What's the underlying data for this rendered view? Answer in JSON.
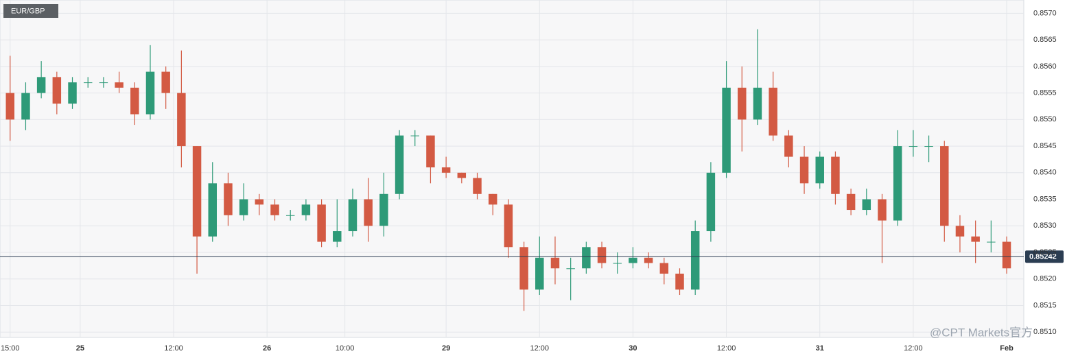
{
  "chart_data": {
    "type": "candlestick",
    "symbol": "EUR/GBP",
    "watermark": "@CPT Markets官方",
    "up_color": "#2e9a78",
    "down_color": "#d35a43",
    "grid": true,
    "x": [
      0,
      2,
      4,
      6,
      8,
      10,
      12,
      14,
      16,
      18,
      20,
      22,
      24,
      26,
      28,
      30,
      32,
      34,
      36,
      38,
      40,
      42,
      44,
      46,
      48,
      50,
      52,
      54,
      56,
      58,
      60,
      62,
      64,
      66,
      68,
      70,
      72,
      74,
      76,
      78,
      80,
      82,
      84,
      86,
      88,
      90,
      92,
      94,
      96,
      98,
      100,
      102,
      104,
      106,
      108,
      110,
      112,
      114,
      116,
      118,
      120,
      122,
      124,
      126,
      128
    ],
    "open": [
      0.8555,
      0.855,
      0.8555,
      0.8558,
      0.8553,
      0.8557,
      0.8557,
      0.8557,
      0.8556,
      0.8551,
      0.8559,
      0.8555,
      0.8545,
      0.8528,
      0.8538,
      0.8532,
      0.8535,
      0.8534,
      0.8532,
      0.8532,
      0.8534,
      0.8527,
      0.8529,
      0.8535,
      0.853,
      0.8536,
      0.8547,
      0.8547,
      0.8541,
      0.854,
      0.8539,
      0.8536,
      0.8534,
      0.8526,
      0.8518,
      0.8524,
      0.8522,
      0.8522,
      0.8526,
      0.8523,
      0.8523,
      0.8524,
      0.8523,
      0.8521,
      0.8518,
      0.8529,
      0.854,
      0.8556,
      0.855,
      0.8556,
      0.8547,
      0.8543,
      0.8538,
      0.8543,
      0.8536,
      0.8533,
      0.8535,
      0.8531,
      0.8545,
      0.8545,
      0.8545,
      0.853,
      0.8528,
      0.8527,
      0.8527
    ],
    "high": [
      0.8562,
      0.8557,
      0.8561,
      0.8559,
      0.8558,
      0.8558,
      0.8558,
      0.8559,
      0.8557,
      0.8564,
      0.856,
      0.8563,
      0.8545,
      0.8542,
      0.854,
      0.8538,
      0.8536,
      0.8535,
      0.8533,
      0.8535,
      0.8535,
      0.8535,
      0.8537,
      0.8539,
      0.854,
      0.8548,
      0.8548,
      0.8547,
      0.8543,
      0.854,
      0.854,
      0.8536,
      0.8535,
      0.8527,
      0.8528,
      0.8528,
      0.8524,
      0.8527,
      0.8527,
      0.8525,
      0.8526,
      0.8525,
      0.8524,
      0.8522,
      0.8531,
      0.8542,
      0.8561,
      0.856,
      0.8567,
      0.8559,
      0.8548,
      0.8545,
      0.8544,
      0.8544,
      0.8537,
      0.8537,
      0.8536,
      0.8548,
      0.8548,
      0.8547,
      0.8546,
      0.8532,
      0.8531,
      0.8531,
      0.8528
    ],
    "low": [
      0.8546,
      0.8548,
      0.8554,
      0.8551,
      0.8552,
      0.8556,
      0.8556,
      0.8555,
      0.8549,
      0.855,
      0.8552,
      0.8541,
      0.8521,
      0.8527,
      0.853,
      0.8531,
      0.8532,
      0.8531,
      0.8531,
      0.8531,
      0.8526,
      0.8526,
      0.8528,
      0.8527,
      0.8528,
      0.8535,
      0.8545,
      0.8538,
      0.8539,
      0.8538,
      0.8535,
      0.8532,
      0.8524,
      0.8514,
      0.8517,
      0.8519,
      0.8516,
      0.8521,
      0.8522,
      0.8521,
      0.8522,
      0.8522,
      0.8519,
      0.8517,
      0.8517,
      0.8527,
      0.8539,
      0.8544,
      0.8549,
      0.8546,
      0.8541,
      0.8536,
      0.8537,
      0.8534,
      0.8532,
      0.8532,
      0.8523,
      0.853,
      0.8543,
      0.8542,
      0.8527,
      0.8525,
      0.8523,
      0.8525,
      0.8521
    ],
    "close": [
      0.855,
      0.8555,
      0.8558,
      0.8553,
      0.8557,
      0.8557,
      0.8557,
      0.8556,
      0.8551,
      0.8559,
      0.8555,
      0.8545,
      0.8528,
      0.8538,
      0.8532,
      0.8535,
      0.8534,
      0.8532,
      0.8532,
      0.8534,
      0.8527,
      0.8529,
      0.8535,
      0.853,
      0.8536,
      0.8547,
      0.8547,
      0.8541,
      0.854,
      0.8539,
      0.8536,
      0.8534,
      0.8526,
      0.8518,
      0.8524,
      0.8522,
      0.8522,
      0.8526,
      0.8523,
      0.8523,
      0.8524,
      0.8523,
      0.8521,
      0.8518,
      0.8529,
      0.854,
      0.8556,
      0.855,
      0.8556,
      0.8547,
      0.8543,
      0.8538,
      0.8543,
      0.8536,
      0.8533,
      0.8535,
      0.8531,
      0.8545,
      0.8545,
      0.8545,
      0.853,
      0.8528,
      0.8527,
      0.8527,
      0.8522
    ],
    "last_price": 0.85242,
    "last_price_color": "#2b3d52",
    "xlim": [
      -1.3,
      130.2
    ],
    "xticks": [
      {
        "value": 0,
        "label": "15:00"
      },
      {
        "value": 9,
        "label": "25"
      },
      {
        "value": 21,
        "label": "12:00"
      },
      {
        "value": 33,
        "label": "26"
      },
      {
        "value": 43,
        "label": "10:00"
      },
      {
        "value": 56,
        "label": "29"
      },
      {
        "value": 68,
        "label": "12:00"
      },
      {
        "value": 80,
        "label": "30"
      },
      {
        "value": 92,
        "label": "12:00"
      },
      {
        "value": 104,
        "label": "31"
      },
      {
        "value": 116,
        "label": "12:00"
      },
      {
        "value": 128,
        "label": "Feb"
      }
    ],
    "ylim": [
      0.8509,
      0.85725
    ],
    "yticks": [
      {
        "value": 0.851,
        "label": "0.8510"
      },
      0.8515,
      {
        "value": 0.852,
        "label": "0.8520"
      },
      0.8525,
      {
        "value": 0.853,
        "label": "0.8530"
      },
      0.8535,
      {
        "value": 0.854,
        "label": "0.8540"
      },
      0.8545,
      {
        "value": 0.855,
        "label": "0.8550"
      },
      0.8555,
      {
        "value": 0.856,
        "label": "0.8560"
      },
      0.8565,
      {
        "value": 0.857,
        "label": "0.8570"
      }
    ]
  }
}
